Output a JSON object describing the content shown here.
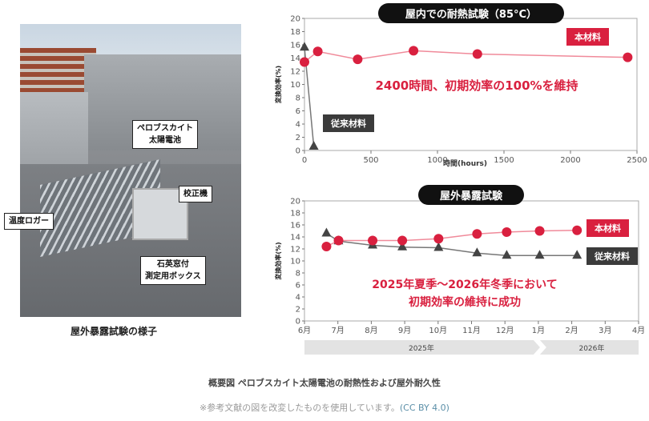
{
  "photo": {
    "labels": [
      "ペロブスカイト",
      "太陽電池",
      "校正機",
      "温度ロガー",
      "石英窓付",
      "測定用ボックス"
    ],
    "caption": "屋外暴露試験の様子"
  },
  "colors": {
    "accent": "#d9203f",
    "conventional": "#444444",
    "year_band": "#e3e3e3"
  },
  "chart_data": [
    {
      "type": "line",
      "title": "屋内での耐熱試験（85°C）",
      "xlabel": "時間(hours)",
      "ylabel": "変換効率(%)",
      "xlim": [
        0,
        2500
      ],
      "ylim": [
        0,
        20
      ],
      "xticks": [
        0,
        500,
        1000,
        1500,
        2000,
        2500
      ],
      "yticks": [
        0,
        2,
        4,
        6,
        8,
        10,
        12,
        14,
        16,
        18,
        20
      ],
      "annotation": "2400時間、初期効率の100%を維持",
      "series": [
        {
          "name": "本材料",
          "marker": "circle",
          "color": "#d9203f",
          "x": [
            0,
            100,
            400,
            820,
            1300,
            2430
          ],
          "y": [
            13.4,
            15.0,
            13.8,
            15.1,
            14.6,
            14.1
          ]
        },
        {
          "name": "従来材料",
          "marker": "triangle",
          "color": "#444444",
          "x": [
            0,
            70
          ],
          "y": [
            15.6,
            0.6
          ]
        }
      ]
    },
    {
      "type": "line",
      "title": "屋外暴露試験",
      "xlabel": "",
      "ylabel": "変換効率(%)",
      "xlim": [
        "2025-06-01",
        "2026-04-01"
      ],
      "ylim": [
        0,
        20
      ],
      "xticks": [
        "6月",
        "7月",
        "8月",
        "9月",
        "10月",
        "11月",
        "12月",
        "1月",
        "2月",
        "3月",
        "4月"
      ],
      "yticks": [
        0,
        2,
        4,
        6,
        8,
        10,
        12,
        14,
        16,
        18,
        20
      ],
      "year_bands": [
        "2025年",
        "2026年"
      ],
      "annotation": [
        "2025年夏季～2026年冬季において",
        "初期効率の維持に成功"
      ],
      "series": [
        {
          "name": "本材料",
          "marker": "circle",
          "color": "#d9203f",
          "x": [
            "2025-06-21",
            "2025-07-02",
            "2025-08-02",
            "2025-08-29",
            "2025-10-01",
            "2025-11-05",
            "2025-12-02",
            "2026-01-01",
            "2026-02-04"
          ],
          "y": [
            12.4,
            13.4,
            13.4,
            13.4,
            13.7,
            14.5,
            14.8,
            15.0,
            15.1
          ]
        },
        {
          "name": "従来材料",
          "marker": "triangle",
          "color": "#444444",
          "x": [
            "2025-06-21",
            "2025-07-02",
            "2025-08-02",
            "2025-08-29",
            "2025-10-01",
            "2025-11-05",
            "2025-12-02",
            "2026-01-01",
            "2026-02-04"
          ],
          "y": [
            14.6,
            13.3,
            12.6,
            12.3,
            12.2,
            11.3,
            10.9,
            10.9,
            10.9
          ]
        }
      ]
    }
  ],
  "footer": {
    "title": "概要図 ペロブスカイト太陽電池の耐熱性および屋外耐久性",
    "note": "※参考文献の図を改変したものを使用しています。",
    "license": "(CC BY 4.0)"
  }
}
